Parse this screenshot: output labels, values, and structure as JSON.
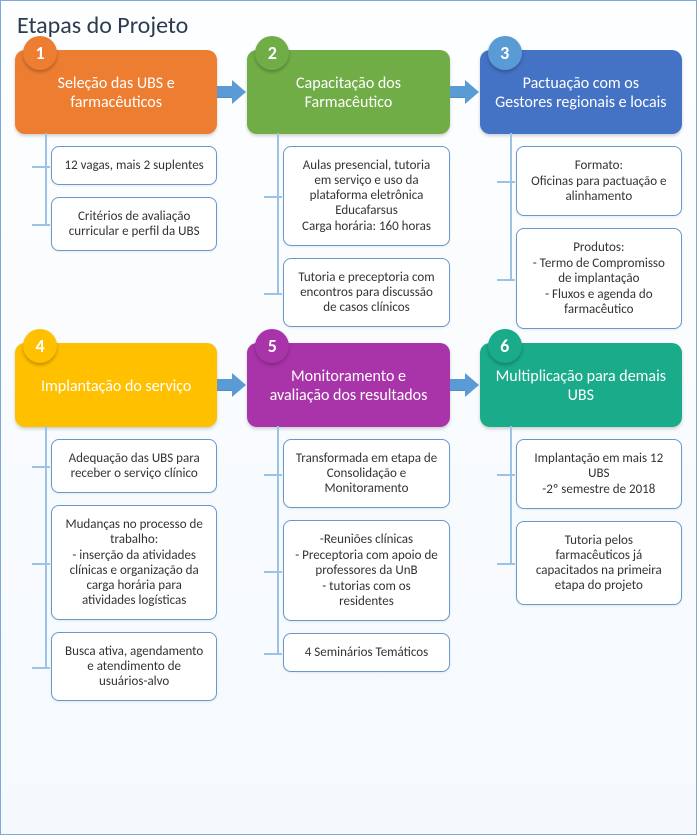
{
  "title": "Etapas do Projeto",
  "colors": {
    "border": "#7fa8d4",
    "arrow": "#5b9bd5",
    "sub_border": "#6699cc",
    "connector": "#9cc3e6"
  },
  "rows": [
    {
      "steps": [
        {
          "num": "1",
          "title": "Seleção das UBS e farmacêuticos",
          "color": "#ed7d31",
          "badge_color": "#ed7d31",
          "subs": [
            {
              "lines": [
                "12 vagas, mais 2 suplentes"
              ]
            },
            {
              "lines": [
                "Critérios de avaliação curricular e perfil da UBS"
              ]
            }
          ]
        },
        {
          "num": "2",
          "title": "Capacitação dos Farmacêutico",
          "color": "#70ad47",
          "badge_color": "#70ad47",
          "subs": [
            {
              "lines": [
                "Aulas presencial, tutoria em serviço e uso da plataforma eletrônica Educafarsus",
                "Carga horária: 160 horas"
              ]
            },
            {
              "lines": [
                "Tutoria e preceptoria com encontros para discussão de casos clínicos"
              ]
            }
          ]
        },
        {
          "num": "3",
          "title": "Pactuação com os Gestores regionais e locais",
          "color": "#4472c4",
          "badge_color": "#5b9bd5",
          "subs": [
            {
              "lines": [
                "Formato:",
                "Oficinas para pactuação e alinhamento"
              ]
            },
            {
              "lines": [
                "Produtos:",
                "- Termo de Compromisso de implantação",
                "- Fluxos e agenda do farmacêutico"
              ]
            }
          ]
        }
      ]
    },
    {
      "steps": [
        {
          "num": "4",
          "title": "Implantação do serviço",
          "color": "#ffc000",
          "badge_color": "#ffc000",
          "subs": [
            {
              "lines": [
                "Adequação das UBS para receber o serviço clínico"
              ]
            },
            {
              "lines": [
                "Mudanças no processo de trabalho:",
                "- inserção da atividades clínicas e organização da carga horária para atividades logísticas"
              ]
            },
            {
              "lines": [
                "Busca ativa, agendamento e atendimento de usuários-alvo"
              ]
            }
          ]
        },
        {
          "num": "5",
          "title": "Monitoramento e avaliação dos resultados",
          "color": "#a934a9",
          "badge_color": "#a934a9",
          "subs": [
            {
              "lines": [
                "Transformada em etapa de Consolidação e Monitoramento"
              ]
            },
            {
              "lines": [
                "-Reuniões clínicas",
                "- Preceptoria com apoio de professores da UnB",
                "- tutorias com os residentes"
              ]
            },
            {
              "lines": [
                "4 Seminários Temáticos"
              ]
            }
          ]
        },
        {
          "num": "6",
          "title": "Multiplicação para demais UBS",
          "color": "#1aab8a",
          "badge_color": "#1aab8a",
          "subs": [
            {
              "lines": [
                "Implantação em mais 12 UBS",
                "-2º semestre de 2018"
              ]
            },
            {
              "lines": [
                "Tutoria pelos farmacêuticos já capacitados na primeira etapa do projeto"
              ]
            }
          ]
        }
      ]
    }
  ]
}
